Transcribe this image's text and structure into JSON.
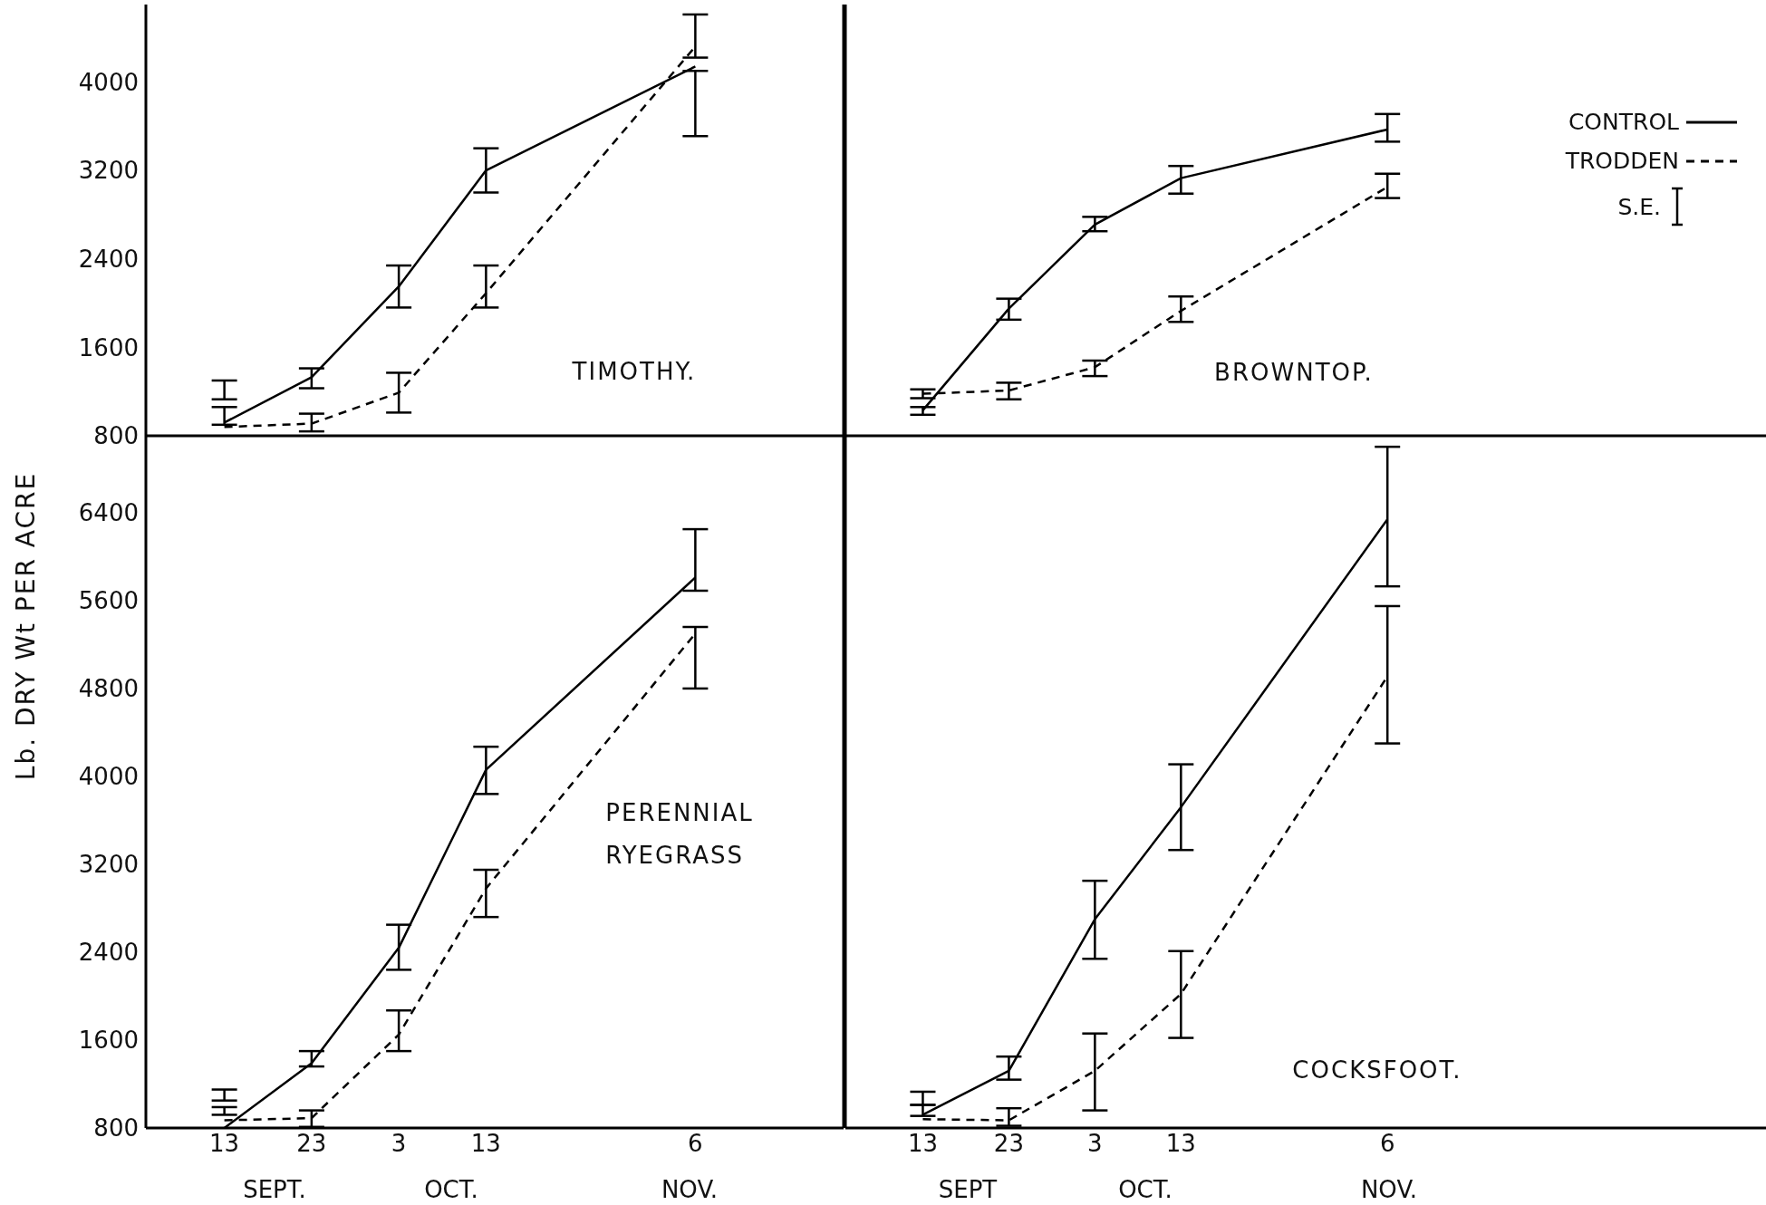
{
  "chart_data": [
    {
      "type": "line",
      "title": "TIMOTHY.",
      "x": [
        "--09-13",
        "--09-23",
        "--10-03",
        "--10-13",
        "--11-06"
      ],
      "xlim": [
        "--09-04",
        "--11-23"
      ],
      "xticks": [
        {
          "value": "--09-13",
          "label": "13"
        },
        {
          "value": "--09-23",
          "label": "23"
        },
        {
          "value": "--10-03",
          "label": "3"
        },
        {
          "value": "--10-13",
          "label": "13"
        },
        {
          "value": "--11-06",
          "label": "6"
        }
      ],
      "ylim": [
        800,
        4700
      ],
      "yticks": [
        800,
        1600,
        2400,
        3200,
        4000
      ],
      "tick_labels": "y",
      "series": [
        {
          "color": "#000000",
          "line_style": "solid",
          "values": [
            920,
            1330,
            2150,
            3200,
            4140
          ],
          "errors": [
            [
              1130,
              1300
            ],
            [
              1230,
              1410
            ],
            [
              1960,
              2340
            ],
            [
              3000,
              3400
            ],
            [
              3510,
              4100
            ]
          ]
        },
        {
          "color": "#000000",
          "line_style": "dashed",
          "values": [
            880,
            910,
            1190,
            2090,
            4320
          ],
          "errors": [
            [
              900,
              1060
            ],
            [
              840,
              1000
            ],
            [
              1010,
              1370
            ],
            [
              1960,
              2340
            ],
            [
              4220,
              4610
            ]
          ]
        }
      ]
    },
    {
      "type": "line",
      "title": "BROWNTOP.",
      "x": [
        "--09-13",
        "--09-23",
        "--10-03",
        "--10-13",
        "--11-06"
      ],
      "xlim": [
        "--09-04",
        "--12-20"
      ],
      "xticks": [
        {
          "value": "--09-13",
          "label": "13"
        },
        {
          "value": "--09-23",
          "label": "23"
        },
        {
          "value": "--10-03",
          "label": "3"
        },
        {
          "value": "--10-13",
          "label": "13"
        },
        {
          "value": "--11-06",
          "label": "6"
        }
      ],
      "ylim": [
        800,
        4700
      ],
      "yticks": [
        800,
        1600,
        2400,
        3200,
        4000
      ],
      "tick_labels": false,
      "legend": "top right",
      "annotations": [
        "S.E."
      ],
      "series": [
        {
          "name": "CONTROL",
          "color": "#000000",
          "line_style": "solid",
          "values": [
            1030,
            1950,
            2710,
            3130,
            3570
          ],
          "errors": [
            [
              990,
              1060
            ],
            [
              1850,
              2040
            ],
            [
              2650,
              2780
            ],
            [
              2990,
              3240
            ],
            [
              3460,
              3710
            ]
          ]
        },
        {
          "name": "TRODDEN",
          "color": "#000000",
          "line_style": "dashed",
          "values": [
            1180,
            1210,
            1420,
            1930,
            3050
          ],
          "errors": [
            [
              1140,
              1220
            ],
            [
              1130,
              1280
            ],
            [
              1340,
              1480
            ],
            [
              1830,
              2060
            ],
            [
              2950,
              3170
            ]
          ]
        }
      ]
    },
    {
      "type": "line",
      "title": "PERENNIAL\nRYEGRASS",
      "ylabel": "Lb. DRY Wt PER ACRE",
      "x": [
        "--09-13",
        "--09-23",
        "--10-03",
        "--10-13",
        "--11-06"
      ],
      "xlim": [
        "--09-04",
        "--11-23"
      ],
      "xticks": [
        {
          "value": "--09-13",
          "label": "13"
        },
        {
          "value": "--09-23",
          "label": "23"
        },
        {
          "value": "--10-03",
          "label": "3"
        },
        {
          "value": "--10-13",
          "label": "13"
        },
        {
          "value": "--11-06",
          "label": "6"
        }
      ],
      "ylim": [
        800,
        7100
      ],
      "yticks": [
        800,
        1600,
        2400,
        3200,
        4000,
        4800,
        5600,
        6400
      ],
      "annotations": [
        "SEPT.",
        "OCT.",
        "NOV."
      ],
      "series": [
        {
          "color": "#000000",
          "line_style": "solid",
          "values": [
            800,
            1390,
            2440,
            4060,
            5810
          ],
          "errors": [
            [
              1050,
              1150
            ],
            [
              1360,
              1500
            ],
            [
              2240,
              2650
            ],
            [
              3840,
              4270
            ],
            [
              5690,
              6250
            ]
          ]
        },
        {
          "color": "#000000",
          "line_style": "dashed",
          "values": [
            870,
            890,
            1650,
            2980,
            5300
          ],
          "errors": [
            [
              920,
              990
            ],
            [
              810,
              960
            ],
            [
              1500,
              1870
            ],
            [
              2720,
              3150
            ],
            [
              4800,
              5360
            ]
          ]
        }
      ]
    },
    {
      "type": "line",
      "title": "COCKSFOOT.",
      "x": [
        "--09-13",
        "--09-23",
        "--10-03",
        "--10-13",
        "--11-06"
      ],
      "xlim": [
        "--09-04",
        "--12-20"
      ],
      "xticks": [
        {
          "value": "--09-13",
          "label": "13"
        },
        {
          "value": "--09-23",
          "label": "23"
        },
        {
          "value": "--10-03",
          "label": "3"
        },
        {
          "value": "--10-13",
          "label": "13"
        },
        {
          "value": "--11-06",
          "label": "6"
        }
      ],
      "ylim": [
        800,
        7100
      ],
      "yticks": [
        800,
        1600,
        2400,
        3200,
        4000,
        4800,
        5600,
        6400
      ],
      "tick_labels": "x",
      "annotations": [
        "SEPT",
        "OCT.",
        "NOV."
      ],
      "series": [
        {
          "color": "#000000",
          "line_style": "solid",
          "values": [
            920,
            1320,
            2700,
            3720,
            6340
          ],
          "errors": [
            [
              1010,
              1130
            ],
            [
              1240,
              1450
            ],
            [
              2340,
              3050
            ],
            [
              3330,
              4110
            ],
            [
              5730,
              7000
            ]
          ]
        },
        {
          "color": "#000000",
          "line_style": "dashed",
          "values": [
            880,
            870,
            1320,
            2020,
            4910
          ],
          "errors": [
            [
              910,
              1010
            ],
            [
              820,
              980
            ],
            [
              960,
              1660
            ],
            [
              1620,
              2410
            ],
            [
              4300,
              5550
            ]
          ]
        }
      ]
    }
  ]
}
